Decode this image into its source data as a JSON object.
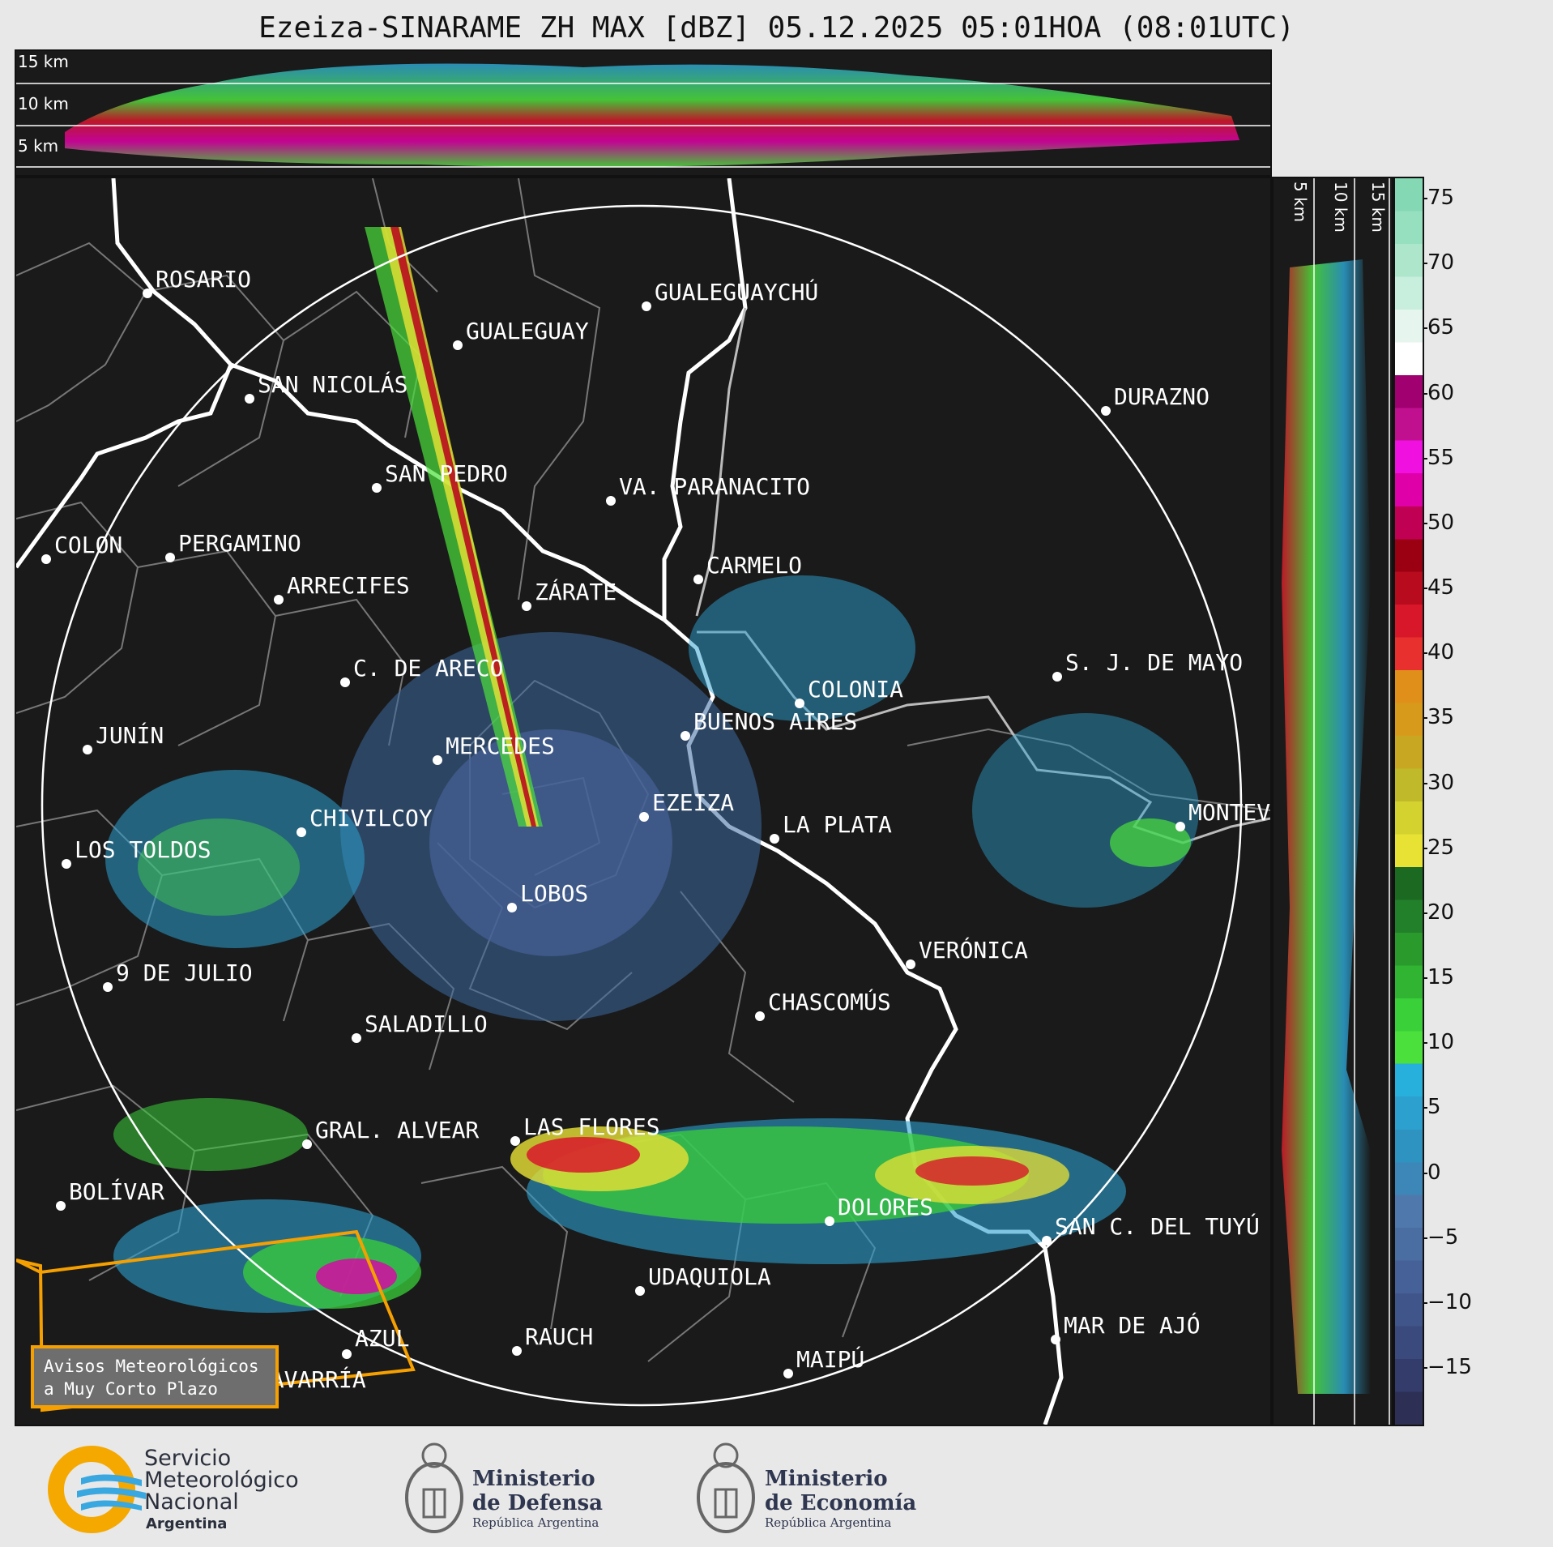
{
  "title": "Ezeiza-SINARAME ZH MAX [dBZ] 05.12.2025 05:01HOA (08:01UTC)",
  "top_panel": {
    "height_labels": [
      "15 km",
      "10 km",
      "5 km"
    ]
  },
  "right_panel": {
    "height_labels": [
      "5 km",
      "10 km",
      "15 km"
    ]
  },
  "colorbar": {
    "ticks": [
      "75",
      "70",
      "65",
      "60",
      "55",
      "50",
      "45",
      "40",
      "35",
      "30",
      "25",
      "20",
      "15",
      "10",
      "5",
      "0",
      "−5",
      "−10",
      "−15"
    ],
    "colors": [
      "#2d2f55",
      "#333c6b",
      "#3a4a7c",
      "#40568b",
      "#466197",
      "#4a6da2",
      "#4f79ad",
      "#3d86b8",
      "#2f93c2",
      "#2ca0cf",
      "#27b0dc",
      "#4ce03c",
      "#3ad03a",
      "#30b432",
      "#2a9a2c",
      "#22802a",
      "#1c6a22",
      "#e8e234",
      "#d4d22e",
      "#c0ba2a",
      "#c8a822",
      "#d89a1a",
      "#e0901a",
      "#e8302e",
      "#d8182a",
      "#b80c1e",
      "#9a0012",
      "#c00052",
      "#e000a8",
      "#f010e0",
      "#c01090",
      "#a00070",
      "#ffffff",
      "#e6f6ee",
      "#c8eedd",
      "#aee6cc",
      "#96dfbf",
      "#84d8b4"
    ]
  },
  "cities": [
    {
      "name": "ROSARIO"
    },
    {
      "name": "GUALEGUAYCHÚ"
    },
    {
      "name": "GUALEGUAY"
    },
    {
      "name": "SAN NICOLÁS"
    },
    {
      "name": "DURAZNO"
    },
    {
      "name": "SAN PEDRO"
    },
    {
      "name": "VA. PARANACITO"
    },
    {
      "name": "COLON"
    },
    {
      "name": "PERGAMINO"
    },
    {
      "name": "CARMELO"
    },
    {
      "name": "ARRECIFES"
    },
    {
      "name": "ZÁRATE"
    },
    {
      "name": "S. J. DE MAYO"
    },
    {
      "name": "C. DE ARECO"
    },
    {
      "name": "COLONIA"
    },
    {
      "name": "JUNÍN"
    },
    {
      "name": "BUENOS AIRES"
    },
    {
      "name": "MERCEDES"
    },
    {
      "name": "MONTEVIDEO"
    },
    {
      "name": "EZEIZA"
    },
    {
      "name": "CHIVILCOY"
    },
    {
      "name": "LA PLATA"
    },
    {
      "name": "LOS TOLDOS"
    },
    {
      "name": "LOBOS"
    },
    {
      "name": "VERÓNICA"
    },
    {
      "name": "9 DE JULIO"
    },
    {
      "name": "CHASCOMÚS"
    },
    {
      "name": "SALADILLO"
    },
    {
      "name": "GRAL. ALVEAR"
    },
    {
      "name": "LAS FLORES"
    },
    {
      "name": "BOLÍVAR"
    },
    {
      "name": "DOLORES"
    },
    {
      "name": "SAN C. DEL TUYÚ"
    },
    {
      "name": "UDAQUIOLA"
    },
    {
      "name": "MAR DE AJÓ"
    },
    {
      "name": "AZUL"
    },
    {
      "name": "RAUCH"
    },
    {
      "name": "MAIPÚ"
    },
    {
      "name": "OLAVARRÍA"
    }
  ],
  "warning_box": {
    "line1": "Avisos Meteorológicos",
    "line2": "a Muy Corto Plazo"
  },
  "footer": {
    "smn": {
      "line1": "Servicio",
      "line2": "Meteorológico",
      "line3": "Nacional",
      "line4": "Argentina"
    },
    "defensa": {
      "line1": "Ministerio",
      "line2": "de Defensa",
      "sub": "República Argentina"
    },
    "economia": {
      "line1": "Ministerio",
      "line2": "de Economía",
      "sub": "República Argentina"
    }
  }
}
